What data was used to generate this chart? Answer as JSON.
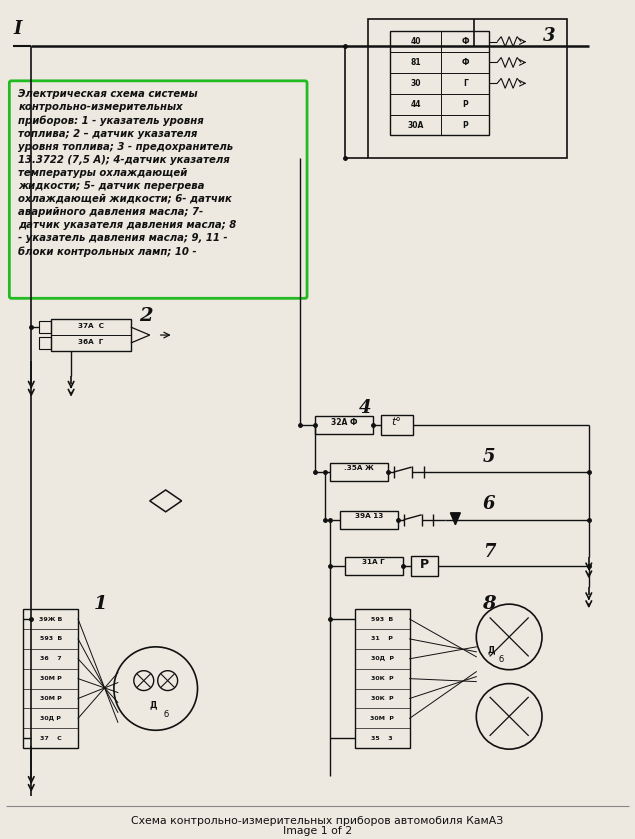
{
  "bg_color": "#ede8e0",
  "title_bottom": "Схема контрольно-измерительных приборов автомобиля КамАЗ",
  "subtitle_bottom": "Image 1 of 2",
  "legend_text": "Электрическая схема системы\nконтрольно-измерительных\nприборов: 1 - указатель уровня\nтоплива; 2 – датчик указателя\nуровня топлива; 3 - предохранитель\n13.3722 (7,5 А); 4-датчик указателя\nтемпературы охлаждающей\nжидкости; 5- датчик перегрева\nохлаждающей жидкости; 6- датчик\nаварийного давления масла; 7-\nдатчик указателя давления масла; 8\n- указатель давления масла; 9, 11 -\nблоки контрольных ламп; 10 -",
  "line_color": "#111111",
  "text_color": "#111111"
}
